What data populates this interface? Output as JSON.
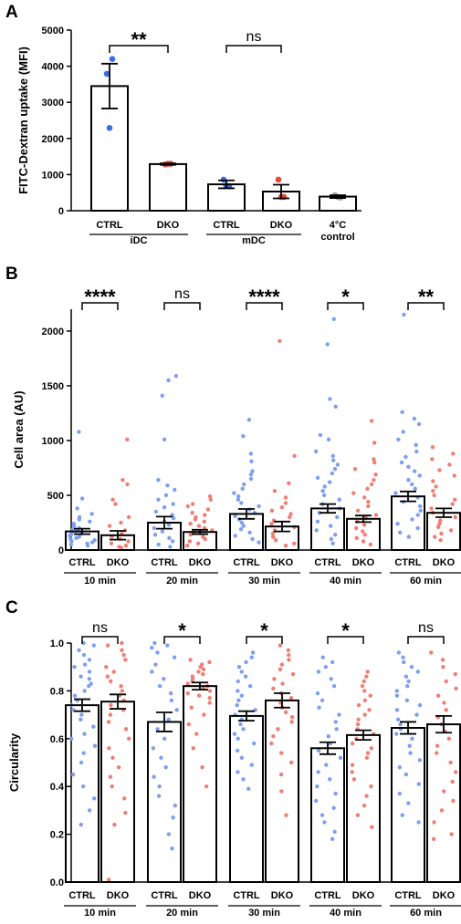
{
  "colors": {
    "ctrl": "#3a6ee8",
    "dko": "#e8463a",
    "control4": "#a8a8a8",
    "ctrl_light": "#7e9ff0",
    "dko_light": "#f07e74"
  },
  "chart_data": [
    {
      "panel": "A",
      "type": "bar",
      "ylabel": "FITC-Dextran uptake (MFI)",
      "ylim": [
        0,
        5000
      ],
      "yticks": [
        0,
        1000,
        2000,
        3000,
        4000,
        5000
      ],
      "categories": [
        "CTRL",
        "DKO",
        "CTRL",
        "DKO",
        "4°C control"
      ],
      "groups": [
        {
          "label": "iDC",
          "categories": [
            0,
            1
          ]
        },
        {
          "label": "mDC",
          "categories": [
            2,
            3
          ]
        }
      ],
      "bars": [
        {
          "mean": 3450,
          "sem": 620,
          "color": "ctrl",
          "points": [
            3790,
            4200,
            2290
          ]
        },
        {
          "mean": 1290,
          "sem": 20,
          "color": "dko",
          "points": [
            1280,
            1300,
            1300
          ]
        },
        {
          "mean": 730,
          "sem": 110,
          "color": "ctrl",
          "points": [
            860,
            680,
            690
          ]
        },
        {
          "mean": 530,
          "sem": 190,
          "color": "dko",
          "points": [
            860,
            380,
            380
          ]
        },
        {
          "mean": 390,
          "sem": 40,
          "color": "control4",
          "points": [
            430,
            360,
            380
          ]
        }
      ],
      "significance": [
        {
          "from": 0,
          "to": 1,
          "label": "**"
        },
        {
          "from": 2,
          "to": 3,
          "label": "ns"
        }
      ]
    },
    {
      "panel": "B",
      "type": "bar",
      "ylabel": "Cell area (AU)",
      "ylim": [
        0,
        2200
      ],
      "yticks": [
        0,
        500,
        1000,
        1500,
        2000
      ],
      "categories": [
        "CTRL",
        "DKO",
        "CTRL",
        "DKO",
        "CTRL",
        "DKO",
        "CTRL",
        "DKO",
        "CTRL",
        "DKO"
      ],
      "groups": [
        {
          "label": "10 min",
          "categories": [
            0,
            1
          ]
        },
        {
          "label": "20 min",
          "categories": [
            2,
            3
          ]
        },
        {
          "label": "30 min",
          "categories": [
            4,
            5
          ]
        },
        {
          "label": "40 min",
          "categories": [
            6,
            7
          ]
        },
        {
          "label": "60 min",
          "categories": [
            8,
            9
          ]
        }
      ],
      "bars": [
        {
          "mean": 170,
          "sem": 25,
          "color": "ctrl",
          "points": [
            1080,
            470,
            380,
            330,
            300,
            280,
            260,
            240,
            220,
            200,
            190,
            180,
            170,
            160,
            150,
            140,
            130,
            120,
            110,
            100,
            90,
            80,
            70,
            60,
            50,
            40
          ]
        },
        {
          "mean": 135,
          "sem": 40,
          "color": "dko",
          "points": [
            1010,
            640,
            600,
            460,
            420,
            300,
            250,
            220,
            180,
            150,
            120,
            100,
            80,
            60,
            40,
            30,
            20
          ]
        },
        {
          "mean": 250,
          "sem": 55,
          "color": "ctrl",
          "points": [
            1590,
            1550,
            1410,
            1010,
            640,
            590,
            550,
            500,
            460,
            420,
            390,
            350,
            320,
            290,
            260,
            230,
            200,
            170,
            140,
            110,
            80,
            50,
            30
          ]
        },
        {
          "mean": 165,
          "sem": 20,
          "color": "dko",
          "points": [
            490,
            460,
            420,
            400,
            370,
            340,
            320,
            300,
            280,
            260,
            240,
            220,
            200,
            180,
            160,
            140,
            120,
            100,
            80,
            60,
            40
          ]
        },
        {
          "mean": 330,
          "sem": 45,
          "color": "ctrl",
          "points": [
            1190,
            1040,
            880,
            810,
            720,
            690,
            650,
            600,
            560,
            520,
            490,
            460,
            430,
            400,
            370,
            340,
            310,
            280,
            250,
            220,
            190,
            160,
            130,
            100,
            70
          ]
        },
        {
          "mean": 215,
          "sem": 45,
          "color": "dko",
          "points": [
            1910,
            860,
            610,
            540,
            480,
            430,
            390,
            360,
            330,
            300,
            270,
            240,
            210,
            180,
            150,
            120,
            90,
            60,
            40
          ]
        },
        {
          "mean": 380,
          "sem": 40,
          "color": "ctrl",
          "points": [
            2110,
            1880,
            1380,
            1310,
            1050,
            1010,
            900,
            860,
            820,
            780,
            740,
            700,
            660,
            620,
            580,
            540,
            500,
            460,
            420,
            380,
            340,
            300,
            260,
            220,
            180,
            140,
            100,
            60
          ]
        },
        {
          "mean": 285,
          "sem": 30,
          "color": "dko",
          "points": [
            1180,
            980,
            830,
            800,
            740,
            690,
            640,
            600,
            560,
            520,
            480,
            440,
            400,
            360,
            320,
            290,
            260,
            230,
            200,
            170,
            140,
            110,
            80,
            50
          ]
        },
        {
          "mean": 490,
          "sem": 45,
          "color": "ctrl",
          "points": [
            2150,
            1260,
            1200,
            1150,
            1080,
            1010,
            960,
            900,
            850,
            800,
            760,
            720,
            680,
            640,
            600,
            560,
            520,
            480,
            440,
            400,
            360,
            320,
            280,
            240,
            200,
            160,
            120
          ]
        },
        {
          "mean": 340,
          "sem": 40,
          "color": "dko",
          "points": [
            940,
            880,
            830,
            780,
            730,
            680,
            630,
            580,
            540,
            500,
            460,
            420,
            380,
            340,
            300,
            270,
            240,
            210,
            180,
            150,
            120,
            90
          ]
        }
      ],
      "significance": [
        {
          "from": 0,
          "to": 1,
          "label": "****"
        },
        {
          "from": 2,
          "to": 3,
          "label": "ns"
        },
        {
          "from": 4,
          "to": 5,
          "label": "****"
        },
        {
          "from": 6,
          "to": 7,
          "label": "*"
        },
        {
          "from": 8,
          "to": 9,
          "label": "**"
        }
      ]
    },
    {
      "panel": "C",
      "type": "bar",
      "ylabel": "Circularity",
      "ylim": [
        0,
        1.0
      ],
      "yticks": [
        0.0,
        0.2,
        0.4,
        0.6,
        0.8,
        1.0
      ],
      "categories": [
        "CTRL",
        "DKO",
        "CTRL",
        "DKO",
        "CTRL",
        "DKO",
        "CTRL",
        "DKO",
        "CTRL",
        "DKO"
      ],
      "groups": [
        {
          "label": "10 min",
          "categories": [
            0,
            1
          ]
        },
        {
          "label": "20 min",
          "categories": [
            2,
            3
          ]
        },
        {
          "label": "30 min",
          "categories": [
            4,
            5
          ]
        },
        {
          "label": "40 min",
          "categories": [
            6,
            7
          ]
        },
        {
          "label": "60 min",
          "categories": [
            8,
            9
          ]
        }
      ],
      "bars": [
        {
          "mean": 0.74,
          "sem": 0.025,
          "color": "ctrl",
          "points": [
            1.0,
            0.99,
            0.97,
            0.95,
            0.93,
            0.91,
            0.9,
            0.88,
            0.86,
            0.85,
            0.83,
            0.82,
            0.8,
            0.78,
            0.76,
            0.74,
            0.72,
            0.7,
            0.68,
            0.65,
            0.62,
            0.6,
            0.57,
            0.54,
            0.5,
            0.45,
            0.4,
            0.35,
            0.3,
            0.24
          ]
        },
        {
          "mean": 0.755,
          "sem": 0.03,
          "color": "dko",
          "points": [
            1.0,
            0.99,
            0.97,
            0.95,
            0.93,
            0.9,
            0.88,
            0.86,
            0.84,
            0.82,
            0.8,
            0.78,
            0.76,
            0.74,
            0.72,
            0.7,
            0.67,
            0.64,
            0.6,
            0.56,
            0.52,
            0.48,
            0.44,
            0.4,
            0.35,
            0.29,
            0.24,
            0.01
          ]
        },
        {
          "mean": 0.67,
          "sem": 0.04,
          "color": "ctrl",
          "points": [
            1.0,
            0.99,
            0.98,
            0.96,
            0.94,
            0.91,
            0.88,
            0.85,
            0.82,
            0.79,
            0.76,
            0.72,
            0.68,
            0.64,
            0.6,
            0.56,
            0.52,
            0.48,
            0.44,
            0.4,
            0.36,
            0.32,
            0.27,
            0.2,
            0.14
          ]
        },
        {
          "mean": 0.82,
          "sem": 0.015,
          "color": "dko",
          "points": [
            0.93,
            0.92,
            0.91,
            0.9,
            0.89,
            0.88,
            0.87,
            0.86,
            0.85,
            0.84,
            0.83,
            0.82,
            0.81,
            0.8,
            0.79,
            0.78,
            0.77,
            0.75,
            0.73,
            0.7,
            0.66,
            0.62,
            0.56,
            0.48,
            0.4
          ]
        },
        {
          "mean": 0.695,
          "sem": 0.02,
          "color": "ctrl",
          "points": [
            0.96,
            0.94,
            0.92,
            0.9,
            0.88,
            0.86,
            0.84,
            0.82,
            0.8,
            0.78,
            0.76,
            0.74,
            0.72,
            0.7,
            0.68,
            0.66,
            0.64,
            0.62,
            0.6,
            0.58,
            0.55,
            0.52,
            0.49,
            0.46,
            0.43,
            0.39
          ]
        },
        {
          "mean": 0.76,
          "sem": 0.03,
          "color": "dko",
          "points": [
            0.99,
            0.97,
            0.95,
            0.93,
            0.91,
            0.89,
            0.87,
            0.85,
            0.83,
            0.81,
            0.79,
            0.77,
            0.75,
            0.73,
            0.71,
            0.69,
            0.67,
            0.64,
            0.61,
            0.58,
            0.54,
            0.5,
            0.45,
            0.38,
            0.28
          ]
        },
        {
          "mean": 0.56,
          "sem": 0.025,
          "color": "ctrl",
          "points": [
            0.94,
            0.92,
            0.9,
            0.88,
            0.85,
            0.82,
            0.79,
            0.76,
            0.73,
            0.7,
            0.67,
            0.64,
            0.61,
            0.58,
            0.55,
            0.52,
            0.49,
            0.46,
            0.43,
            0.4,
            0.37,
            0.34,
            0.31,
            0.28,
            0.25,
            0.21,
            0.18
          ]
        },
        {
          "mean": 0.615,
          "sem": 0.02,
          "color": "dko",
          "points": [
            0.88,
            0.86,
            0.84,
            0.82,
            0.8,
            0.78,
            0.76,
            0.74,
            0.72,
            0.7,
            0.68,
            0.66,
            0.64,
            0.62,
            0.6,
            0.58,
            0.56,
            0.54,
            0.52,
            0.49,
            0.46,
            0.43,
            0.4,
            0.36,
            0.32,
            0.28,
            0.23
          ]
        },
        {
          "mean": 0.645,
          "sem": 0.025,
          "color": "ctrl",
          "points": [
            0.96,
            0.94,
            0.92,
            0.9,
            0.88,
            0.86,
            0.84,
            0.82,
            0.8,
            0.78,
            0.76,
            0.74,
            0.72,
            0.7,
            0.68,
            0.66,
            0.64,
            0.62,
            0.6,
            0.57,
            0.54,
            0.51,
            0.48,
            0.45,
            0.41,
            0.37,
            0.33,
            0.28,
            0.25
          ]
        },
        {
          "mean": 0.66,
          "sem": 0.035,
          "color": "dko",
          "points": [
            0.96,
            0.93,
            0.9,
            0.87,
            0.84,
            0.81,
            0.78,
            0.75,
            0.72,
            0.69,
            0.66,
            0.63,
            0.6,
            0.57,
            0.54,
            0.5,
            0.46,
            0.42,
            0.38,
            0.34,
            0.3,
            0.25,
            0.2,
            0.18
          ]
        }
      ],
      "significance": [
        {
          "from": 0,
          "to": 1,
          "label": "ns"
        },
        {
          "from": 2,
          "to": 3,
          "label": "*"
        },
        {
          "from": 4,
          "to": 5,
          "label": "*"
        },
        {
          "from": 6,
          "to": 7,
          "label": "*"
        },
        {
          "from": 8,
          "to": 9,
          "label": "ns"
        }
      ]
    }
  ]
}
